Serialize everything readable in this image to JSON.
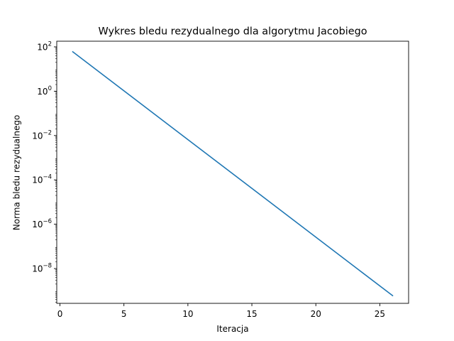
{
  "chart_data": {
    "type": "line",
    "title": "Wykres bledu rezydualnego dla algorytmu Jacobiego",
    "xlabel": "Iteracja",
    "ylabel": "Norma bledu rezydualnego",
    "x_scale": "linear",
    "y_scale": "log",
    "xlim": [
      -0.25,
      27.25
    ],
    "ylim": [
      2.7e-10,
      180
    ],
    "x_ticks": [
      0,
      5,
      10,
      15,
      20,
      25
    ],
    "y_ticks": [
      {
        "value": 100.0,
        "base": "10",
        "exp": "2"
      },
      {
        "value": 1.0,
        "base": "10",
        "exp": "0"
      },
      {
        "value": 0.01,
        "base": "10",
        "exp": "−2"
      },
      {
        "value": 0.0001,
        "base": "10",
        "exp": "−4"
      },
      {
        "value": 1e-06,
        "base": "10",
        "exp": "−6"
      },
      {
        "value": 1e-08,
        "base": "10",
        "exp": "−8"
      }
    ],
    "grid": false,
    "legend": "none",
    "series": [
      {
        "color": "#1f77b4",
        "x": [
          1,
          26
        ],
        "y": [
          60,
          6e-10
        ]
      }
    ]
  }
}
